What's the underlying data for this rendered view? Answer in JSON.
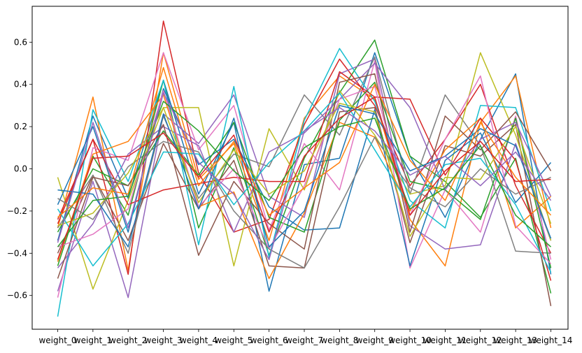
{
  "chart_data": {
    "type": "line",
    "title": "",
    "xlabel": "",
    "ylabel": "",
    "categories": [
      "weight_0",
      "weight_1",
      "weight_2",
      "weight_3",
      "weight_4",
      "weight_5",
      "weight_6",
      "weight_7",
      "weight_8",
      "weight_9",
      "weight_10",
      "weight_11",
      "weight_12",
      "weight_13",
      "weight_14"
    ],
    "ylim": [
      -0.76,
      0.77
    ],
    "yticks": [
      -0.6,
      -0.4,
      -0.2,
      0.0,
      0.2,
      0.4,
      0.6
    ],
    "ytick_labels": [
      "−0.6",
      "−0.4",
      "−0.2",
      "0.0",
      "0.2",
      "0.4",
      "0.6"
    ],
    "grid": false,
    "legend": "none",
    "colors": [
      "#1f77b4",
      "#ff7f0e",
      "#2ca02c",
      "#d62728",
      "#9467bd",
      "#8c564b",
      "#e377c2",
      "#7f7f7f",
      "#bcbd22",
      "#17becf"
    ],
    "series": [
      {
        "values": [
          -0.34,
          0.25,
          -0.14,
          0.42,
          -0.12,
          0.22,
          -0.58,
          0.02,
          0.05,
          0.55,
          0.06,
          -0.23,
          0.14,
          0.45,
          -0.5
        ]
      },
      {
        "values": [
          -0.28,
          0.34,
          -0.48,
          0.55,
          -0.05,
          0.12,
          -0.34,
          0.24,
          0.44,
          0.33,
          -0.24,
          -0.46,
          0.22,
          0.44,
          -0.28
        ]
      },
      {
        "values": [
          -0.46,
          0.06,
          -0.22,
          0.42,
          -0.28,
          0.1,
          -0.41,
          0.05,
          0.36,
          0.61,
          0.06,
          -0.06,
          -0.23,
          0.05,
          -0.59
        ]
      },
      {
        "values": [
          -0.26,
          0.14,
          -0.5,
          0.7,
          -0.02,
          -0.3,
          -0.24,
          0.21,
          0.52,
          0.3,
          -0.08,
          0.14,
          0.4,
          -0.08,
          -0.4
        ]
      },
      {
        "values": [
          -0.58,
          -0.06,
          -0.61,
          0.26,
          0.12,
          0.35,
          -0.13,
          -0.23,
          0.45,
          0.52,
          -0.27,
          -0.38,
          -0.36,
          0.12,
          -0.34
        ]
      },
      {
        "values": [
          -0.4,
          -0.03,
          -0.34,
          0.12,
          -0.19,
          0.04,
          -0.46,
          -0.47,
          0.27,
          0.29,
          -0.35,
          0.11,
          0.06,
          0.21,
          -0.65
        ]
      },
      {
        "values": [
          -0.61,
          0.1,
          0.04,
          0.55,
          0.09,
          0.3,
          -0.29,
          0.12,
          -0.1,
          0.51,
          -0.47,
          -0.1,
          -0.3,
          0.25,
          -0.43
        ]
      },
      {
        "values": [
          -0.28,
          -0.03,
          -0.4,
          0.25,
          -0.14,
          0.07,
          0.01,
          0.35,
          0.16,
          0.53,
          -0.12,
          0.35,
          0.11,
          -0.39,
          -0.4
        ]
      },
      {
        "values": [
          -0.04,
          -0.57,
          -0.15,
          0.29,
          0.29,
          -0.46,
          0.19,
          -0.1,
          0.37,
          0.16,
          -0.12,
          -0.08,
          0.55,
          0.16,
          -0.34
        ]
      },
      {
        "values": [
          -0.7,
          0.28,
          -0.06,
          0.42,
          -0.36,
          0.39,
          -0.42,
          0.23,
          0.57,
          0.32,
          -0.15,
          -0.28,
          0.3,
          0.29,
          -0.2
        ]
      },
      {
        "values": [
          -0.17,
          0.2,
          -0.3,
          0.38,
          0.02,
          0.14,
          -0.18,
          -0.29,
          -0.28,
          0.28,
          -0.46,
          0.04,
          0.17,
          -0.16,
          0.03
        ]
      },
      {
        "values": [
          -0.44,
          0.07,
          0.13,
          0.35,
          -0.18,
          -0.11,
          -0.52,
          -0.21,
          0.22,
          0.15,
          -0.2,
          0.09,
          0.24,
          -0.28,
          -0.13
        ]
      },
      {
        "values": [
          -0.3,
          0.0,
          -0.08,
          0.18,
          -0.03,
          0.22,
          -0.23,
          -0.3,
          0.23,
          0.41,
          -0.06,
          -0.1,
          -0.24,
          0.24,
          -0.47
        ]
      },
      {
        "values": [
          -0.24,
          0.14,
          -0.17,
          -0.1,
          -0.07,
          -0.04,
          -0.06,
          -0.06,
          0.46,
          0.34,
          0.33,
          -0.03,
          0.24,
          0.04,
          -0.53
        ]
      },
      {
        "values": [
          -0.47,
          -0.26,
          0.07,
          0.2,
          0.11,
          -0.3,
          0.08,
          0.17,
          0.33,
          0.5,
          0.29,
          -0.1,
          0.14,
          0.22,
          -0.13
        ]
      },
      {
        "values": [
          -0.52,
          -0.04,
          -0.08,
          0.21,
          -0.41,
          -0.06,
          -0.26,
          -0.38,
          0.41,
          0.45,
          -0.3,
          0.25,
          0.09,
          0.27,
          -0.01
        ]
      },
      {
        "values": [
          -0.37,
          -0.31,
          -0.19,
          0.37,
          -0.18,
          0.0,
          -0.38,
          -0.08,
          0.33,
          0.39,
          -0.22,
          0.14,
          0.44,
          -0.27,
          -0.45
        ]
      },
      {
        "values": [
          -0.14,
          -0.24,
          0.01,
          0.13,
          0.08,
          -0.2,
          -0.38,
          -0.47,
          -0.18,
          0.15,
          -0.09,
          -0.18,
          0.0,
          -0.12,
          -0.04
        ]
      },
      {
        "values": [
          -0.27,
          -0.21,
          -0.02,
          0.29,
          -0.16,
          0.09,
          -0.12,
          -0.01,
          0.31,
          0.27,
          -0.32,
          -0.04,
          -0.05,
          0.2,
          -0.26
        ]
      },
      {
        "values": [
          -0.19,
          -0.46,
          -0.26,
          0.08,
          0.07,
          -0.17,
          0.03,
          0.18,
          0.36,
          0.09,
          -0.18,
          0.02,
          0.05,
          -0.17,
          -0.49
        ]
      },
      {
        "values": [
          -0.1,
          -0.12,
          -0.37,
          0.26,
          -0.19,
          0.24,
          -0.37,
          -0.2,
          0.3,
          0.26,
          -0.01,
          0.06,
          0.19,
          0.11,
          -0.33
        ]
      },
      {
        "values": [
          -0.23,
          -0.09,
          -0.12,
          0.48,
          -0.08,
          0.13,
          -0.22,
          -0.09,
          0.03,
          0.4,
          0.04,
          -0.15,
          0.22,
          -0.04,
          -0.22
        ]
      },
      {
        "values": [
          -0.37,
          -0.15,
          -0.13,
          0.32,
          0.18,
          -0.01,
          -0.15,
          0.1,
          0.2,
          0.24,
          -0.19,
          -0.09,
          0.11,
          -0.22,
          -0.37
        ]
      },
      {
        "values": [
          -0.43,
          0.05,
          0.06,
          0.17,
          -0.04,
          0.16,
          -0.3,
          0.06,
          0.24,
          0.34,
          -0.22,
          -0.01,
          0.13,
          -0.06,
          -0.05
        ]
      },
      {
        "values": [
          -0.35,
          0.22,
          -0.28,
          0.36,
          0.03,
          -0.12,
          -0.43,
          0.18,
          0.29,
          0.18,
          -0.03,
          0.06,
          -0.08,
          0.08,
          -0.15
        ]
      }
    ]
  }
}
